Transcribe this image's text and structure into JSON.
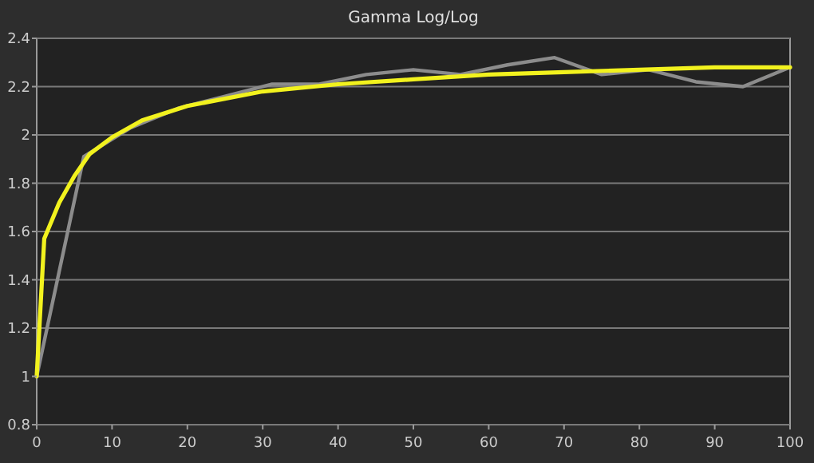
{
  "chart_data": {
    "type": "line",
    "title": "Gamma Log/Log",
    "xlim": [
      0,
      100
    ],
    "xticks": [
      0,
      10,
      20,
      30,
      40,
      50,
      60,
      70,
      80,
      90,
      100
    ],
    "ylim": [
      0.8,
      2.4
    ],
    "yticks": [
      0.8,
      1,
      1.2,
      1.4,
      1.6,
      1.8,
      2,
      2.2,
      2.4
    ],
    "grid": "y",
    "marker": "none",
    "line_style": "solid",
    "series": [
      {
        "color": "#8c8c8c",
        "x": [
          0,
          6.25,
          12.5,
          18.75,
          25,
          31.25,
          37.5,
          43.75,
          50,
          56.25,
          62.5,
          68.75,
          75,
          81.25,
          87.5,
          93.75,
          100
        ],
        "values": [
          1.0,
          1.91,
          2.03,
          2.11,
          2.16,
          2.21,
          2.21,
          2.25,
          2.27,
          2.25,
          2.29,
          2.32,
          2.25,
          2.27,
          2.22,
          2.2,
          2.28
        ]
      },
      {
        "color": "#f2f21e",
        "x": [
          0,
          1,
          3,
          5,
          7,
          10,
          14,
          20,
          30,
          40,
          50,
          60,
          70,
          80,
          90,
          100
        ],
        "values": [
          1.0,
          1.57,
          1.72,
          1.83,
          1.92,
          1.99,
          2.06,
          2.12,
          2.18,
          2.21,
          2.23,
          2.25,
          2.26,
          2.27,
          2.28,
          2.28
        ]
      }
    ]
  }
}
